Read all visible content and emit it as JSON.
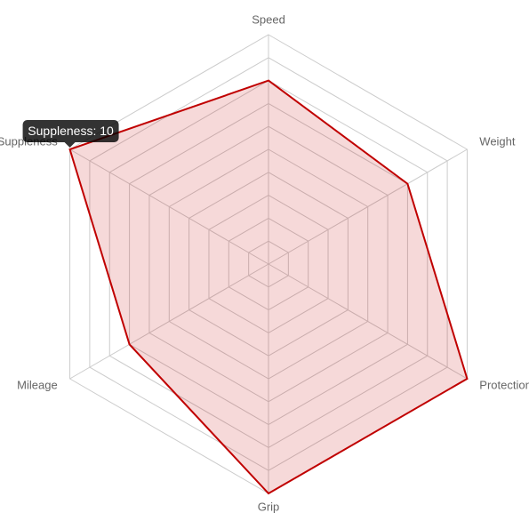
{
  "chart_data": {
    "type": "radar",
    "categories": [
      "Speed",
      "Weight",
      "Protection",
      "Grip",
      "Mileage",
      "Suppleness"
    ],
    "series": [
      {
        "name": "Suppleness",
        "color": "#c00000",
        "values": [
          8,
          7,
          10,
          10,
          7,
          10
        ]
      }
    ],
    "rlim": [
      0,
      10
    ],
    "rticks": [
      1,
      2,
      3,
      4,
      5,
      6,
      7,
      8,
      9,
      10
    ],
    "grid": true,
    "tooltip": {
      "text": "Suppleness: 10",
      "index": 5
    }
  }
}
